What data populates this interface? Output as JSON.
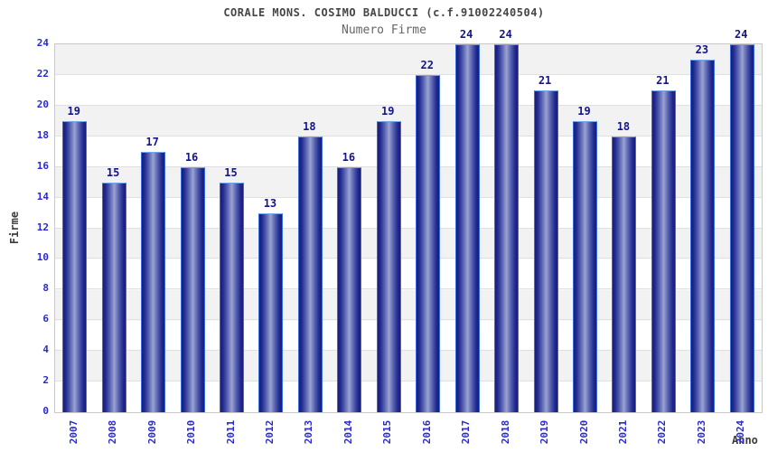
{
  "chart_data": {
    "type": "bar",
    "title": "CORALE MONS. COSIMO BALDUCCI (c.f.91002240504)",
    "subtitle": "Numero Firme",
    "categories": [
      "2007",
      "2008",
      "2009",
      "2010",
      "2011",
      "2012",
      "2013",
      "2014",
      "2015",
      "2016",
      "2017",
      "2018",
      "2019",
      "2020",
      "2021",
      "2022",
      "2023",
      "2024"
    ],
    "values": [
      19,
      15,
      17,
      16,
      15,
      13,
      18,
      16,
      19,
      22,
      24,
      24,
      21,
      19,
      18,
      21,
      23,
      24
    ],
    "xlabel": "Anno",
    "ylabel": "Firme",
    "ylim": [
      0,
      24
    ],
    "ytick_step": 2,
    "grid": true,
    "legend_position": "none",
    "colors": {
      "bar_edge": "#161d76",
      "bar_center": "#9ba3d2",
      "bar_outline": "#3a6ede",
      "axis_tick_text": "#2a2ac8",
      "value_label_text": "#14148c",
      "title_text": "#454545",
      "subtitle_text": "#666666",
      "band_gray": "#f2f2f2",
      "band_white": "#ffffff",
      "gridline": "#e0e0e0",
      "plot_border": "#c9c9c9"
    }
  }
}
